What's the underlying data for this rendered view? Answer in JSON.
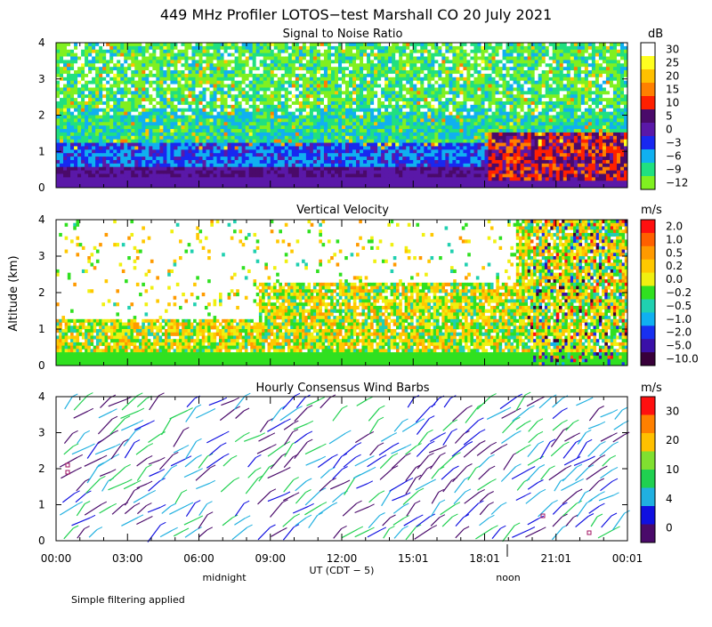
{
  "title": "449 MHz Profiler LOTOS−test Marshall CO 20 July 2021",
  "y_axis_label": "Altitude (km)",
  "x_axis_label": "UT  (CDT − 5)",
  "x_sublabels": [
    "midnight",
    "noon"
  ],
  "footer": "Simple filtering applied",
  "colors": {
    "black": "#000000",
    "magenta": "#a01060",
    "green": "#2ad02a",
    "cyan": "#20b0e0",
    "blue": "#1010e0",
    "violet": "#5a10a0"
  },
  "chart_data": [
    {
      "type": "heatmap",
      "title": "Signal to Noise Ratio",
      "unit": "dB",
      "ylim": [
        0,
        4
      ],
      "y_ticks": [
        "0",
        "1",
        "2",
        "3",
        "4"
      ],
      "x_ticks": [
        "00:00",
        "03:00",
        "06:00",
        "09:00",
        "12:00",
        "15:01",
        "18:01",
        "21:01",
        "00:01"
      ],
      "colorbar_labels": [
        "30",
        "25",
        "20",
        "15",
        "10",
        "5",
        "0",
        "−3",
        "−6",
        "−9",
        "−12"
      ],
      "colorbar_colors": [
        "#ffffff",
        "#ffff20",
        "#ffc000",
        "#ff8000",
        "#ff2000",
        "#4a0a6a",
        "#5a18a8",
        "#1828f0",
        "#10b0f0",
        "#20e080",
        "#80f020"
      ]
    },
    {
      "type": "heatmap",
      "title": "Vertical Velocity",
      "unit": "m/s",
      "ylim": [
        0,
        4
      ],
      "y_ticks": [
        "0",
        "1",
        "2",
        "3",
        "4"
      ],
      "x_ticks": [
        "00:00",
        "03:00",
        "06:00",
        "09:00",
        "12:00",
        "15:01",
        "18:01",
        "21:01",
        "00:01"
      ],
      "colorbar_labels": [
        "2.0",
        "1.0",
        "0.5",
        "0.2",
        "0.0",
        "−0.2",
        "−0.5",
        "−1.0",
        "−2.0",
        "−5.0",
        "−10.0"
      ],
      "colorbar_colors": [
        "#ff1010",
        "#ff6000",
        "#ff9a00",
        "#ffc800",
        "#f0f010",
        "#30e020",
        "#20d0b0",
        "#10b0f0",
        "#1830f0",
        "#3a10a8",
        "#38003a"
      ]
    },
    {
      "type": "wind_barbs",
      "title": "Hourly Consensus Wind Barbs",
      "unit": "m/s",
      "ylim": [
        0,
        4
      ],
      "y_ticks": [
        "0",
        "1",
        "2",
        "3",
        "4"
      ],
      "x_ticks": [
        "00:00",
        "03:00",
        "06:00",
        "09:00",
        "12:00",
        "15:01",
        "18:01",
        "21:01",
        "00:01"
      ],
      "colorbar_labels": [
        "30",
        "20",
        "10",
        "4",
        "0"
      ],
      "colorbar_colors": [
        "#ff1010",
        "#ff8000",
        "#ffc000",
        "#80e030",
        "#20d050",
        "#20b0e0",
        "#1010e0",
        "#4a0a6a"
      ]
    }
  ]
}
